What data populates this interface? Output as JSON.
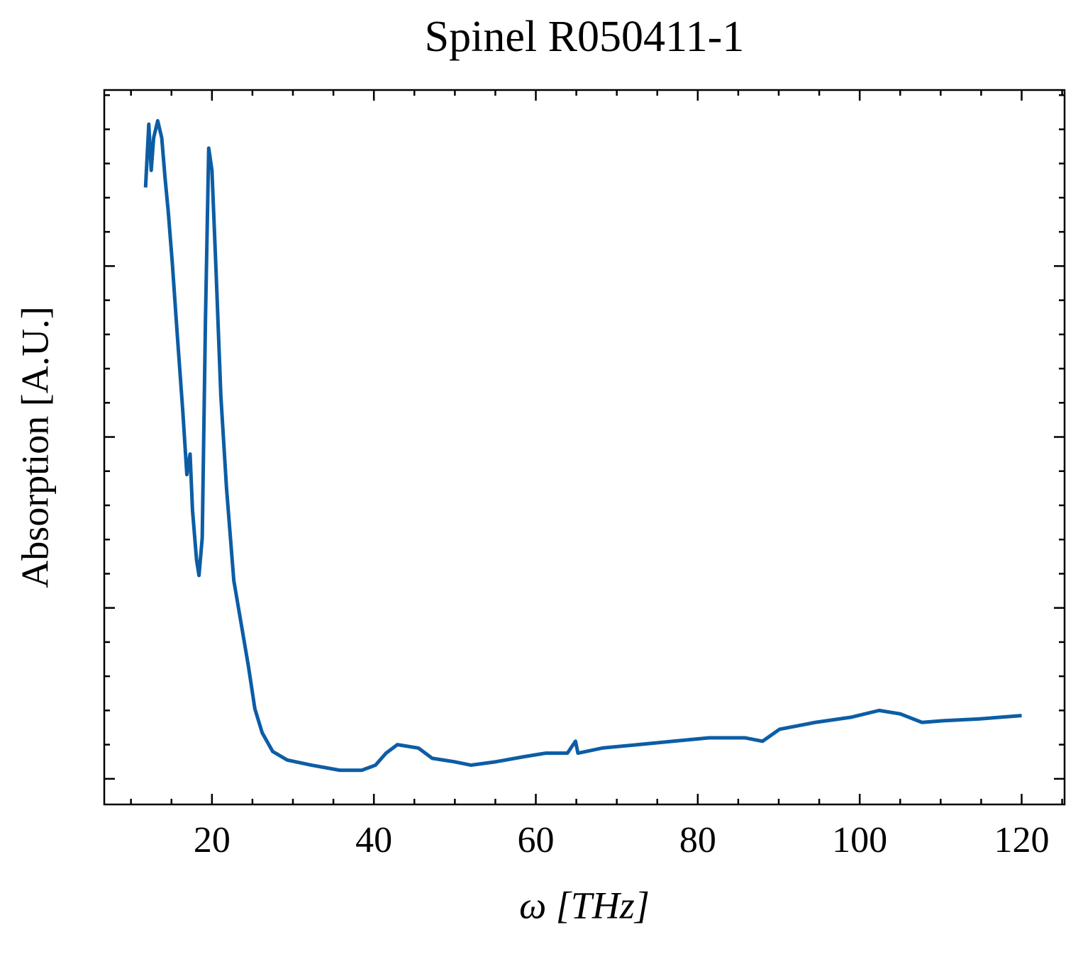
{
  "chart_data": {
    "type": "line",
    "title": "Spinel R050411-1",
    "xlabel": "ω [THz]",
    "ylabel": "Absorption [A.U.]",
    "x": [
      11.8,
      12.2,
      12.5,
      12.8,
      13.3,
      13.8,
      14.2,
      14.6,
      15.1,
      15.7,
      16.4,
      16.9,
      17.3,
      17.6,
      18.1,
      18.4,
      18.8,
      19.2,
      19.6,
      20.0,
      20.5,
      21.1,
      21.8,
      22.7,
      23.6,
      24.5,
      25.3,
      26.2,
      27.5,
      29.3,
      32.3,
      35.8,
      38.5,
      40.2,
      41.5,
      42.9,
      45.5,
      47.2,
      49.9,
      52.0,
      55.1,
      58.6,
      61.2,
      63.9,
      64.9,
      65.2,
      68.2,
      72.6,
      77.0,
      81.4,
      85.8,
      88.0,
      90.1,
      94.5,
      98.9,
      102.4,
      105.0,
      107.7,
      110.3,
      114.7,
      117.3,
      120.0
    ],
    "series": [
      {
        "name": "Spinel R050411-1",
        "color": "#0c5da5",
        "values": [
          3.46,
          3.83,
          3.56,
          3.75,
          3.85,
          3.75,
          3.52,
          3.32,
          3.02,
          2.61,
          2.15,
          1.78,
          1.9,
          1.57,
          1.28,
          1.19,
          1.41,
          2.69,
          3.69,
          3.56,
          2.98,
          2.24,
          1.7,
          1.16,
          0.91,
          0.66,
          0.41,
          0.27,
          0.16,
          0.11,
          0.08,
          0.05,
          0.05,
          0.08,
          0.15,
          0.2,
          0.18,
          0.12,
          0.1,
          0.08,
          0.1,
          0.13,
          0.15,
          0.15,
          0.22,
          0.15,
          0.18,
          0.2,
          0.22,
          0.24,
          0.24,
          0.22,
          0.29,
          0.33,
          0.36,
          0.4,
          0.38,
          0.33,
          0.34,
          0.35,
          0.36,
          0.37
        ]
      }
    ],
    "xlim": [
      6.7,
      125.3
    ],
    "ylim": [
      -0.15,
      4.03
    ],
    "xticks": [
      20,
      40,
      60,
      80,
      100,
      120
    ],
    "xminorticks": [
      10,
      15,
      25,
      30,
      35,
      45,
      50,
      55,
      65,
      70,
      75,
      85,
      90,
      95,
      105,
      110,
      115,
      125
    ],
    "yticks": [
      0,
      1,
      2,
      3
    ],
    "yminorticks": [
      0.2,
      0.4,
      0.6,
      0.8,
      1.2,
      1.4,
      1.6,
      1.8,
      2.2,
      2.4,
      2.6,
      2.8,
      3.2,
      3.4,
      3.6,
      3.8,
      4.0
    ]
  }
}
